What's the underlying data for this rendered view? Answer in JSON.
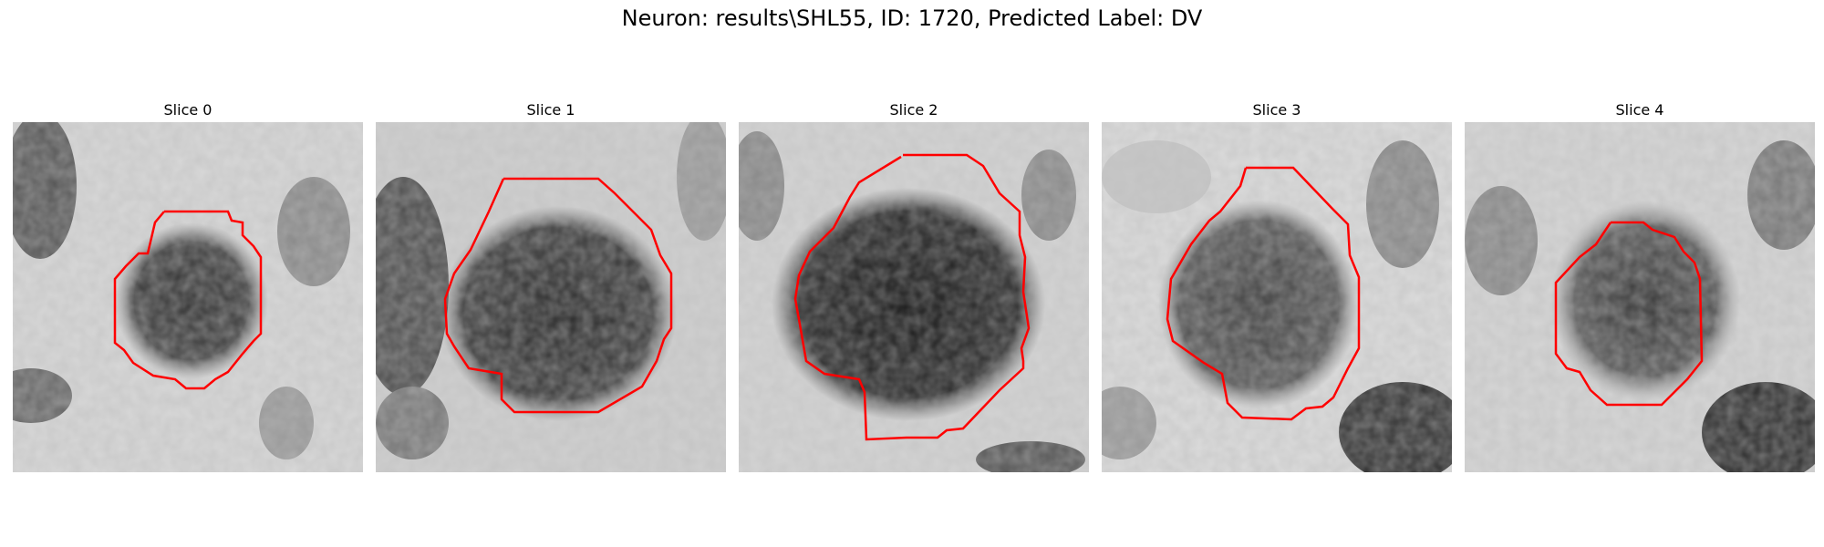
{
  "figure": {
    "title": "Neuron: results\\SHL55, ID: 1720, Predicted Label: DV",
    "contour_color": "#ff0000"
  },
  "panels": [
    {
      "title": "Slice 0"
    },
    {
      "title": "Slice 1"
    },
    {
      "title": "Slice 2"
    },
    {
      "title": "Slice 3"
    },
    {
      "title": "Slice 4"
    }
  ]
}
